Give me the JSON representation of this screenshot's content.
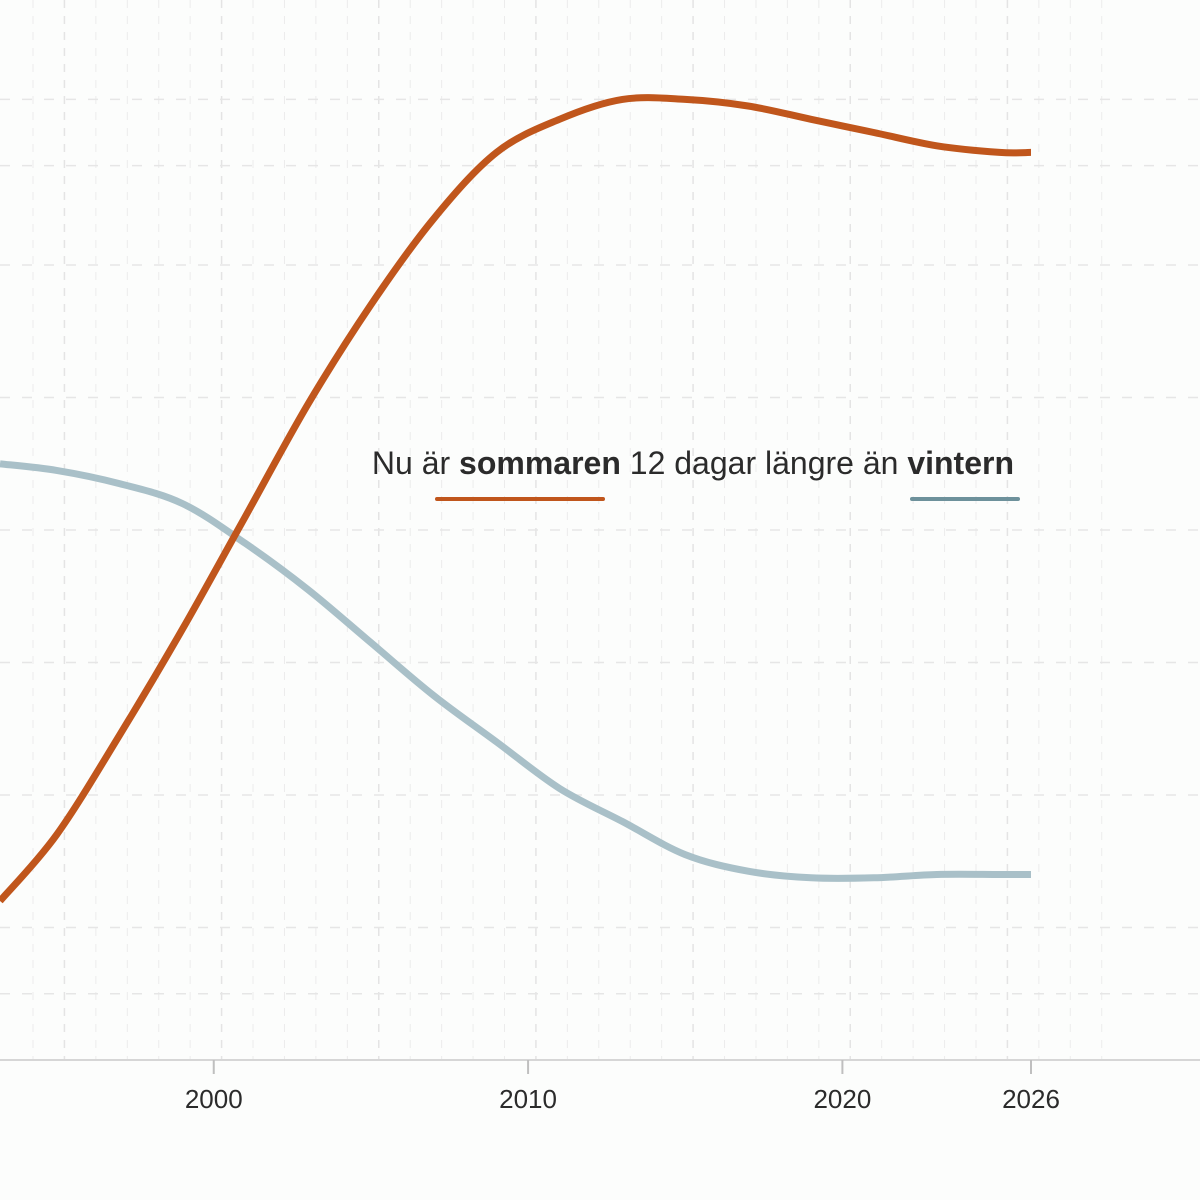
{
  "chart_data": {
    "type": "line",
    "title": "",
    "xlabel": "",
    "ylabel": "",
    "xlim": [
      1993.2,
      2026
    ],
    "ylim": [
      -4,
      12
    ],
    "grid": true,
    "x_ticks": [
      2000,
      2010,
      2020,
      2026
    ],
    "x_tick_labels": [
      "2000",
      "2010",
      "2020",
      "2026"
    ],
    "series": [
      {
        "name": "sommaren",
        "color": "#c0561c",
        "x": [
          1993.2,
          1995,
          1997,
          1999,
          2001,
          2003,
          2005,
          2007,
          2009,
          2011,
          2013,
          2015,
          2017,
          2019,
          2021,
          2023,
          2025,
          2026
        ],
        "y": [
          -1.6,
          -0.6,
          0.9,
          2.5,
          4.2,
          5.9,
          7.4,
          8.7,
          9.7,
          10.2,
          10.5,
          10.5,
          10.4,
          10.2,
          10.0,
          9.8,
          9.7,
          9.7
        ]
      },
      {
        "name": "vintern",
        "color": "#a9c0c8",
        "x": [
          1993.2,
          1995,
          1997,
          1999,
          2001,
          2003,
          2005,
          2007,
          2009,
          2011,
          2013,
          2015,
          2017,
          2019,
          2021,
          2023,
          2025,
          2026
        ],
        "y": [
          5.0,
          4.9,
          4.7,
          4.4,
          3.8,
          3.1,
          2.3,
          1.5,
          0.8,
          0.1,
          -0.4,
          -0.9,
          -1.15,
          -1.25,
          -1.25,
          -1.2,
          -1.2,
          -1.2
        ]
      }
    ],
    "annotation": {
      "prefix": "Nu är ",
      "summer_word": "sommaren",
      "middle": " 12 dagar längre än ",
      "winter_word": "vintern",
      "summer_color": "#c0561c",
      "winter_color": "#6d919b"
    }
  }
}
